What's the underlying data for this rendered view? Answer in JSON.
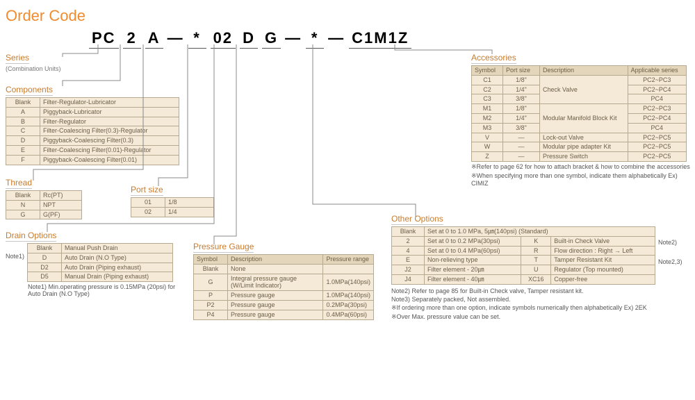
{
  "title": "Order Code",
  "code": {
    "s0": "PC",
    "s1": "2",
    "s2": "A",
    "d": "—",
    "s3": "*",
    "s4": "02",
    "s5": "D",
    "s6": "G",
    "s7": "*",
    "s8": "C1M1Z"
  },
  "series": {
    "label": "Series",
    "sub": "(Combination Units)"
  },
  "components": {
    "label": "Components",
    "rows": [
      [
        "Blank",
        "Filter-Regulator-Lubricator"
      ],
      [
        "A",
        "Piggyback-Lubricator"
      ],
      [
        "B",
        "Filter-Regulator"
      ],
      [
        "C",
        "Filter-Coalescing Filter(0.3)-Regulator"
      ],
      [
        "D",
        "Piggyback-Coalescing Filter(0.3)"
      ],
      [
        "E",
        "Filter-Coalescing Filter(0.01)-Regulator"
      ],
      [
        "F",
        "Piggyback-Coalescing Filter(0.01)"
      ]
    ]
  },
  "thread": {
    "label": "Thread",
    "rows": [
      [
        "Blank",
        "Rc(PT)"
      ],
      [
        "N",
        "NPT"
      ],
      [
        "G",
        "G(PF)"
      ]
    ]
  },
  "port": {
    "label": "Port size",
    "rows": [
      [
        "01",
        "1/8"
      ],
      [
        "02",
        "1/4"
      ]
    ]
  },
  "drain": {
    "label": "Drain Options",
    "rows": [
      [
        "Blank",
        "Manual Push Drain"
      ],
      [
        "D",
        "Auto Drain (N.O Type)"
      ],
      [
        "D2",
        "Auto Drain (Piping exhaust)"
      ],
      [
        "D5",
        "Manual Drain (Piping exhaust)"
      ]
    ],
    "note_prefix": "Note1)",
    "note": "Note1) Min.operating pressure is 0.15MPa (20psi) for Auto Drain (N.O Type)"
  },
  "gauge": {
    "label": "Pressure Gauge",
    "headers": [
      "Symbol",
      "Description",
      "Pressure range"
    ],
    "rows": [
      [
        "Blank",
        "None",
        ""
      ],
      [
        "G",
        "Integral pressure gauge (W/Limit Indicator)",
        "1.0MPa(140psi)"
      ],
      [
        "P",
        "Pressure gauge",
        "1.0MPa(140psi)"
      ],
      [
        "P2",
        "Pressure gauge",
        "0.2MPa(30psi)"
      ],
      [
        "P4",
        "Pressure gauge",
        "0.4MPa(60psi)"
      ]
    ]
  },
  "other": {
    "label": "Other Options",
    "rows": [
      [
        "Blank",
        "Set at 0 to 1.0 MPa, 5㎛(140psi) (Standard)",
        "",
        ""
      ],
      [
        "2",
        "Set at 0 to 0.2 MPa(30psi)",
        "K",
        "Built-in Check Valve"
      ],
      [
        "4",
        "Set at 0 to 0.4 MPa(60psi)",
        "R",
        "Flow direction : Right → Left"
      ],
      [
        "E",
        "Non-relieving type",
        "T",
        "Tamper Resistant Kit"
      ],
      [
        "J2",
        "Filter element - 20㎛",
        "U",
        "Regulator (Top mounted)"
      ],
      [
        "J4",
        "Filter element - 40㎛",
        "XC16",
        "Copper-free"
      ]
    ],
    "side_notes": [
      "",
      "Note2)",
      "",
      "Note2,3)",
      "",
      ""
    ],
    "notes": [
      "Note2) Refer to page 85 for Built-in Check valve, Tamper resistant kit.",
      "Note3) Separately packed, Not assembled.",
      "※If ordering more than one option, indicate symbols numerically then alphabetically Ex) 2EK",
      "※Over Max. pressure value can be set."
    ]
  },
  "accessories": {
    "label": "Accessories",
    "headers": [
      "Symbol",
      "Port size",
      "Description",
      "Applicable series"
    ],
    "rows": [
      [
        "C1",
        "1/8\"",
        "Check Valve",
        "PC2~PC3"
      ],
      [
        "C2",
        "1/4\"",
        "",
        "PC2~PC4"
      ],
      [
        "C3",
        "3/8\"",
        "",
        "PC4"
      ],
      [
        "M1",
        "1/8\"",
        "Modular Manifold Block Kit",
        "PC2~PC3"
      ],
      [
        "M2",
        "1/4\"",
        "",
        "PC2~PC4"
      ],
      [
        "M3",
        "3/8\"",
        "",
        "PC4"
      ],
      [
        "V",
        "—",
        "Lock-out Valve",
        "PC2~PC5"
      ],
      [
        "W",
        "—",
        "Modular pipe adapter Kit",
        "PC2~PC5"
      ],
      [
        "Z",
        "—",
        "Pressure Switch",
        "PC2~PC5"
      ]
    ],
    "notes": [
      "※Refer to page 62 for how to attach bracket & how to combine the accessories",
      "※When specifying more than one symbol, indicate them alphabetically Ex) CIMIZ"
    ]
  }
}
